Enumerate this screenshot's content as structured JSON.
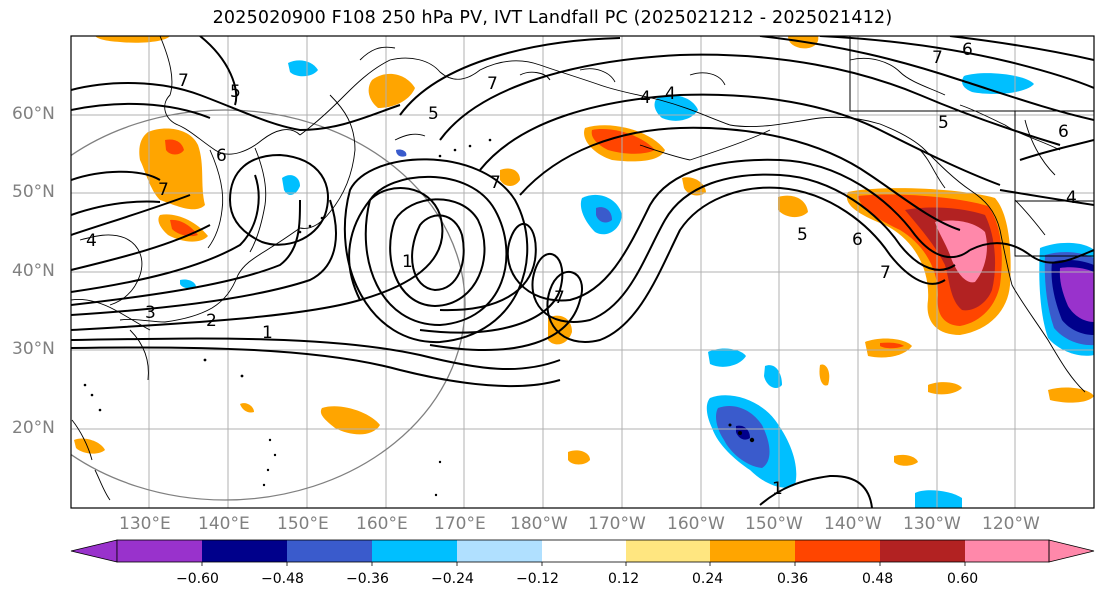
{
  "title": "2025020900 F108 250 hPa PV, IVT Landfall PC (2025021212 - 2025021412)",
  "latitude_labels": [
    "60°N",
    "50°N",
    "40°N",
    "30°N",
    "20°N"
  ],
  "longitude_labels": [
    "130°E",
    "140°E",
    "150°E",
    "160°E",
    "170°E",
    "180°W",
    "170°W",
    "160°W",
    "150°W",
    "140°W",
    "130°W",
    "120°W"
  ],
  "contour_labels": [
    "7",
    "5",
    "5",
    "7",
    "4",
    "6",
    "5",
    "6",
    "4",
    "7",
    "7",
    "5",
    "6",
    "4",
    "3",
    "2",
    "1",
    "1",
    "7",
    "5",
    "6",
    "7",
    "7",
    "4",
    "1"
  ],
  "colorbar": {
    "tick_labels": [
      "−0.60",
      "−0.48",
      "−0.36",
      "−0.24",
      "−0.12",
      "0.12",
      "0.24",
      "0.36",
      "0.48",
      "0.60"
    ],
    "colors": [
      "#9932cc",
      "#00008b",
      "#3a5bcc",
      "#00bfff",
      "#b0e0ff",
      "#ffffff",
      "#ffe680",
      "#ffa500",
      "#ff4500",
      "#b22222",
      "#ff88aa"
    ]
  }
}
